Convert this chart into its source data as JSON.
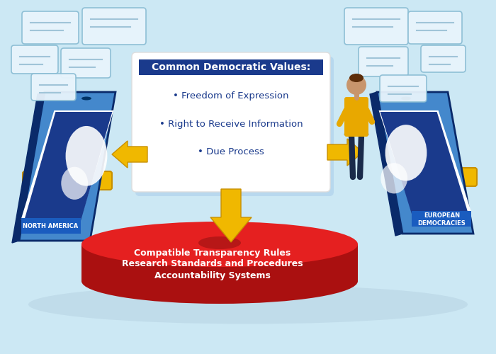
{
  "bg_color": "#cce8f4",
  "title_box_text": "Common Democratic Values:",
  "bullet_points": [
    "• Freedom of Expression",
    "• Right to Receive Information",
    "• Due Process"
  ],
  "red_disk_lines": [
    "Compatible Transparency Rules",
    "Research Standards and Procedures",
    "Accountability Systems"
  ],
  "left_label": "NORTH AMERICA",
  "right_label": "EUROPEAN\nDEMOCRACIES",
  "phone_color": "#1a5cbf",
  "phone_light": "#4488dd",
  "phone_dark": "#0a3070",
  "map_color": "#1a3a8c",
  "map_light": "#2255bb",
  "disk_top_color": "#e52020",
  "disk_side_color": "#aa1010",
  "disk_shadow_color": "#c5dce8",
  "arrow_color": "#f0b800",
  "arrow_dark": "#c89000",
  "box_header_color": "#1a3a8c",
  "box_text_color": "#1a3a8c",
  "white_text": "#ffffff",
  "chat_bg": "#e8f4fc",
  "chat_line": "#a0c4d8",
  "person_skin": "#c8956c",
  "person_hair": "#5c2d0a",
  "person_top": "#e8a800",
  "person_pants": "#1a2a4a",
  "person_shoes": "#111111"
}
